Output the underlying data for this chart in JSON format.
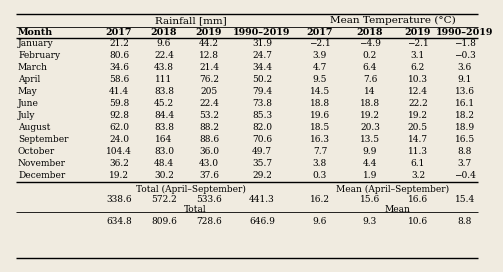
{
  "months": [
    "January",
    "February",
    "March",
    "April",
    "May",
    "June",
    "July",
    "August",
    "September",
    "October",
    "November",
    "December"
  ],
  "rainfall": [
    [
      "21.2",
      "9.6",
      "44.2",
      "31.9"
    ],
    [
      "80.6",
      "22.4",
      "12.8",
      "24.7"
    ],
    [
      "34.6",
      "43.8",
      "21.4",
      "34.4"
    ],
    [
      "58.6",
      "111",
      "76.2",
      "50.2"
    ],
    [
      "41.4",
      "83.8",
      "205",
      "79.4"
    ],
    [
      "59.8",
      "45.2",
      "22.4",
      "73.8"
    ],
    [
      "92.8",
      "84.4",
      "53.2",
      "85.3"
    ],
    [
      "62.0",
      "83.8",
      "88.2",
      "82.0"
    ],
    [
      "24.0",
      "164",
      "88.6",
      "70.6"
    ],
    [
      "104.4",
      "83.0",
      "36.0",
      "49.7"
    ],
    [
      "36.2",
      "48.4",
      "43.0",
      "35.7"
    ],
    [
      "19.2",
      "30.2",
      "37.6",
      "29.2"
    ]
  ],
  "temperature": [
    [
      "−2.1",
      "−4.9",
      "−2.1",
      "−1.8"
    ],
    [
      "3.9",
      "0.2",
      "3.1",
      "−0.3"
    ],
    [
      "4.7",
      "6.4",
      "6.2",
      "3.6"
    ],
    [
      "9.5",
      "7.6",
      "10.3",
      "9.1"
    ],
    [
      "14.5",
      "14",
      "12.4",
      "13.6"
    ],
    [
      "18.8",
      "18.8",
      "22.2",
      "16.1"
    ],
    [
      "19.6",
      "19.2",
      "19.2",
      "18.2"
    ],
    [
      "18.5",
      "20.3",
      "20.5",
      "18.9"
    ],
    [
      "16.3",
      "13.5",
      "14.7",
      "16.5"
    ],
    [
      "7.7",
      "9.9",
      "11.3",
      "8.8"
    ],
    [
      "3.8",
      "4.4",
      "6.1",
      "3.7"
    ],
    [
      "0.3",
      "1.9",
      "3.2",
      "−0.4"
    ]
  ],
  "total_april_sep_rain": [
    "338.6",
    "572.2",
    "533.6",
    "441.3"
  ],
  "mean_april_sep_temp": [
    "16.2",
    "15.6",
    "16.6",
    "15.4"
  ],
  "total_rain": [
    "634.8",
    "809.6",
    "728.6",
    "646.9"
  ],
  "mean_temp": [
    "9.6",
    "9.3",
    "10.6",
    "8.8"
  ],
  "bg_color": "#f0ebe0",
  "rainfall_label": "Rainfall [mm]",
  "temp_label": "Mean Temperature (°C)",
  "month_label": "Month",
  "years": [
    "2017",
    "2018",
    "2019",
    "1990–2019"
  ],
  "total_apr_sep_label": "Total (April–September)",
  "mean_apr_sep_label": "Mean (April–September)",
  "total_label": "Total",
  "mean_label": "Mean"
}
